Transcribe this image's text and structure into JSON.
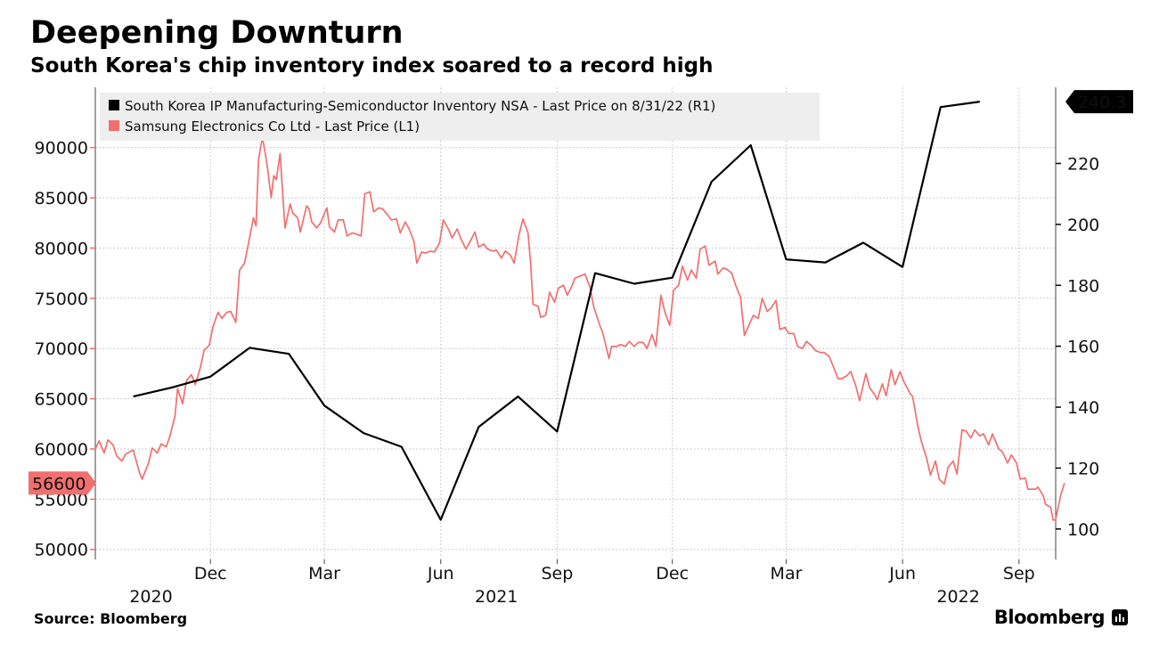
{
  "header": {
    "title": "Deepening Downturn",
    "subtitle": "South Korea's chip inventory index soared to a record high"
  },
  "footer": {
    "source": "Source: Bloomberg",
    "brand": "Bloomberg",
    "brand_icon": "bloomberg-terminal-icon"
  },
  "chart_data": {
    "type": "line",
    "dual_axis": true,
    "legend_placement": "top-left",
    "grid": true,
    "colors": {
      "inventory": "#000000",
      "samsung": "#f26f6f",
      "grid": "#cccccc",
      "legend_bg": "#eeeeee"
    },
    "x_axis": {
      "range": [
        "2020-09-01",
        "2022-09-30"
      ],
      "ticks": [
        {
          "date": "2020-12-01",
          "label": "Dec"
        },
        {
          "date": "2021-03-01",
          "label": "Mar"
        },
        {
          "date": "2021-06-01",
          "label": "Jun"
        },
        {
          "date": "2021-09-01",
          "label": "Sep"
        },
        {
          "date": "2021-12-01",
          "label": "Dec"
        },
        {
          "date": "2022-03-01",
          "label": "Mar"
        },
        {
          "date": "2022-06-01",
          "label": "Jun"
        },
        {
          "date": "2022-09-01",
          "label": "Sep"
        }
      ],
      "year_labels": [
        {
          "date": "2020-10-15",
          "label": "2020"
        },
        {
          "date": "2021-07-15",
          "label": "2021"
        },
        {
          "date": "2022-07-15",
          "label": "2022"
        }
      ]
    },
    "left_axis": {
      "series": "samsung",
      "range": [
        49000,
        96000
      ],
      "ticks": [
        50000,
        55000,
        60000,
        65000,
        70000,
        75000,
        80000,
        85000,
        90000
      ],
      "last_value_label": "56600",
      "last_value": 56600
    },
    "right_axis": {
      "series": "inventory",
      "range": [
        90,
        245
      ],
      "ticks": [
        100,
        120,
        140,
        160,
        180,
        200,
        220
      ],
      "last_value_label": "240.3",
      "last_value": 240.3
    },
    "series": [
      {
        "key": "inventory",
        "name": "South Korea IP Manufacturing-Semiconductor Inventory NSA - Last Price on 8/31/22 (R1)",
        "axis": "right",
        "data": [
          [
            "2020-10-01",
            143.5
          ],
          [
            "2020-11-01",
            146.5
          ],
          [
            "2020-12-01",
            150.0
          ],
          [
            "2021-01-01",
            159.5
          ],
          [
            "2021-02-01",
            157.5
          ],
          [
            "2021-03-01",
            140.5
          ],
          [
            "2021-04-01",
            131.5
          ],
          [
            "2021-05-01",
            127.0
          ],
          [
            "2021-06-01",
            103.0
          ],
          [
            "2021-07-01",
            133.5
          ],
          [
            "2021-08-01",
            143.5
          ],
          [
            "2021-09-01",
            132.0
          ],
          [
            "2021-10-01",
            184.0
          ],
          [
            "2021-11-01",
            180.5
          ],
          [
            "2021-12-01",
            182.5
          ],
          [
            "2022-01-01",
            214.0
          ],
          [
            "2022-02-01",
            226.0
          ],
          [
            "2022-03-01",
            188.5
          ],
          [
            "2022-04-01",
            187.5
          ],
          [
            "2022-05-01",
            194.0
          ],
          [
            "2022-06-01",
            186.0
          ],
          [
            "2022-07-01",
            238.5
          ],
          [
            "2022-08-01",
            240.3
          ]
        ]
      },
      {
        "key": "samsung",
        "name": "Samsung Electronics Co Ltd - Last Price (L1)",
        "axis": "left",
        "data": [
          [
            "2020-09-01",
            60000
          ],
          [
            "2020-09-04",
            60800
          ],
          [
            "2020-09-08",
            59600
          ],
          [
            "2020-09-11",
            60900
          ],
          [
            "2020-09-15",
            60400
          ],
          [
            "2020-09-18",
            59300
          ],
          [
            "2020-09-22",
            58800
          ],
          [
            "2020-09-25",
            59500
          ],
          [
            "2020-10-01",
            59900
          ],
          [
            "2020-10-06",
            57600
          ],
          [
            "2020-10-08",
            57000
          ],
          [
            "2020-10-13",
            58600
          ],
          [
            "2020-10-16",
            60100
          ],
          [
            "2020-10-20",
            59600
          ],
          [
            "2020-10-23",
            60500
          ],
          [
            "2020-10-27",
            60200
          ],
          [
            "2020-10-30",
            61300
          ],
          [
            "2020-11-03",
            63300
          ],
          [
            "2020-11-05",
            66000
          ],
          [
            "2020-11-09",
            64500
          ],
          [
            "2020-11-12",
            66800
          ],
          [
            "2020-11-16",
            67400
          ],
          [
            "2020-11-19",
            66400
          ],
          [
            "2020-11-23",
            68100
          ],
          [
            "2020-11-26",
            69800
          ],
          [
            "2020-11-30",
            70300
          ],
          [
            "2020-12-03",
            72200
          ],
          [
            "2020-12-07",
            73600
          ],
          [
            "2020-12-10",
            73000
          ],
          [
            "2020-12-14",
            73600
          ],
          [
            "2020-12-17",
            73700
          ],
          [
            "2020-12-21",
            72600
          ],
          [
            "2020-12-24",
            77800
          ],
          [
            "2020-12-28",
            78500
          ],
          [
            "2021-01-04",
            83000
          ],
          [
            "2021-01-06",
            82200
          ],
          [
            "2021-01-08",
            88800
          ],
          [
            "2021-01-11",
            91000
          ],
          [
            "2021-01-13",
            89700
          ],
          [
            "2021-01-15",
            88000
          ],
          [
            "2021-01-18",
            85000
          ],
          [
            "2021-01-20",
            87200
          ],
          [
            "2021-01-22",
            86800
          ],
          [
            "2021-01-25",
            89400
          ],
          [
            "2021-01-27",
            85600
          ],
          [
            "2021-01-29",
            82000
          ],
          [
            "2021-02-02",
            84400
          ],
          [
            "2021-02-04",
            83500
          ],
          [
            "2021-02-08",
            83000
          ],
          [
            "2021-02-10",
            81600
          ],
          [
            "2021-02-15",
            84200
          ],
          [
            "2021-02-17",
            83900
          ],
          [
            "2021-02-19",
            82600
          ],
          [
            "2021-02-23",
            82000
          ],
          [
            "2021-02-26",
            82500
          ],
          [
            "2021-03-03",
            84000
          ],
          [
            "2021-03-05",
            82100
          ],
          [
            "2021-03-09",
            81600
          ],
          [
            "2021-03-12",
            82800
          ],
          [
            "2021-03-16",
            82800
          ],
          [
            "2021-03-19",
            81200
          ],
          [
            "2021-03-23",
            81500
          ],
          [
            "2021-03-26",
            81400
          ],
          [
            "2021-03-30",
            81200
          ],
          [
            "2021-04-02",
            85400
          ],
          [
            "2021-04-06",
            85600
          ],
          [
            "2021-04-09",
            83600
          ],
          [
            "2021-04-13",
            84000
          ],
          [
            "2021-04-16",
            83900
          ],
          [
            "2021-04-20",
            83300
          ],
          [
            "2021-04-23",
            82800
          ],
          [
            "2021-04-27",
            82900
          ],
          [
            "2021-04-30",
            81500
          ],
          [
            "2021-05-04",
            82600
          ],
          [
            "2021-05-07",
            81900
          ],
          [
            "2021-05-11",
            80600
          ],
          [
            "2021-05-13",
            78500
          ],
          [
            "2021-05-17",
            79600
          ],
          [
            "2021-05-20",
            79500
          ],
          [
            "2021-05-24",
            79700
          ],
          [
            "2021-05-27",
            79600
          ],
          [
            "2021-05-31",
            80500
          ],
          [
            "2021-06-03",
            82800
          ],
          [
            "2021-06-07",
            81900
          ],
          [
            "2021-06-10",
            81000
          ],
          [
            "2021-06-14",
            81900
          ],
          [
            "2021-06-17",
            80900
          ],
          [
            "2021-06-21",
            79900
          ],
          [
            "2021-06-24",
            80600
          ],
          [
            "2021-06-28",
            81600
          ],
          [
            "2021-07-01",
            80100
          ],
          [
            "2021-07-05",
            80400
          ],
          [
            "2021-07-08",
            79900
          ],
          [
            "2021-07-12",
            79700
          ],
          [
            "2021-07-15",
            79800
          ],
          [
            "2021-07-19",
            79000
          ],
          [
            "2021-07-22",
            79700
          ],
          [
            "2021-07-26",
            79300
          ],
          [
            "2021-07-29",
            78500
          ],
          [
            "2021-08-02",
            81400
          ],
          [
            "2021-08-05",
            82900
          ],
          [
            "2021-08-09",
            81500
          ],
          [
            "2021-08-11",
            78500
          ],
          [
            "2021-08-13",
            74400
          ],
          [
            "2021-08-17",
            74200
          ],
          [
            "2021-08-19",
            73100
          ],
          [
            "2021-08-23",
            73300
          ],
          [
            "2021-08-26",
            75600
          ],
          [
            "2021-08-30",
            74600
          ],
          [
            "2021-09-02",
            76000
          ],
          [
            "2021-09-06",
            76300
          ],
          [
            "2021-09-09",
            75300
          ],
          [
            "2021-09-13",
            76300
          ],
          [
            "2021-09-15",
            77000
          ],
          [
            "2021-09-23",
            77400
          ],
          [
            "2021-09-27",
            76100
          ],
          [
            "2021-09-30",
            74100
          ],
          [
            "2021-10-05",
            72200
          ],
          [
            "2021-10-07",
            71600
          ],
          [
            "2021-10-12",
            69000
          ],
          [
            "2021-10-14",
            70200
          ],
          [
            "2021-10-18",
            70200
          ],
          [
            "2021-10-21",
            70400
          ],
          [
            "2021-10-25",
            70200
          ],
          [
            "2021-10-28",
            70700
          ],
          [
            "2021-11-01",
            70200
          ],
          [
            "2021-11-04",
            70600
          ],
          [
            "2021-11-08",
            70600
          ],
          [
            "2021-11-11",
            70000
          ],
          [
            "2021-11-15",
            71400
          ],
          [
            "2021-11-18",
            70200
          ],
          [
            "2021-11-22",
            75300
          ],
          [
            "2021-11-25",
            73700
          ],
          [
            "2021-11-29",
            72300
          ],
          [
            "2021-12-02",
            75800
          ],
          [
            "2021-12-06",
            76300
          ],
          [
            "2021-12-09",
            78200
          ],
          [
            "2021-12-13",
            76800
          ],
          [
            "2021-12-16",
            77800
          ],
          [
            "2021-12-20",
            77000
          ],
          [
            "2021-12-23",
            79900
          ],
          [
            "2021-12-27",
            80200
          ],
          [
            "2021-12-30",
            78300
          ],
          [
            "2022-01-04",
            78700
          ],
          [
            "2022-01-06",
            77400
          ],
          [
            "2022-01-10",
            78000
          ],
          [
            "2022-01-13",
            77900
          ],
          [
            "2022-01-17",
            77500
          ],
          [
            "2022-01-20",
            76300
          ],
          [
            "2022-01-24",
            75100
          ],
          [
            "2022-01-27",
            71300
          ],
          [
            "2022-02-03",
            73300
          ],
          [
            "2022-02-07",
            73000
          ],
          [
            "2022-02-10",
            75000
          ],
          [
            "2022-02-14",
            73700
          ],
          [
            "2022-02-17",
            74000
          ],
          [
            "2022-02-21",
            74800
          ],
          [
            "2022-02-24",
            71900
          ],
          [
            "2022-02-28",
            72100
          ],
          [
            "2022-03-03",
            71500
          ],
          [
            "2022-03-07",
            71500
          ],
          [
            "2022-03-10",
            70200
          ],
          [
            "2022-03-14",
            70000
          ],
          [
            "2022-03-17",
            70700
          ],
          [
            "2022-03-21",
            70300
          ],
          [
            "2022-03-24",
            69800
          ],
          [
            "2022-03-28",
            69600
          ],
          [
            "2022-03-31",
            69600
          ],
          [
            "2022-04-04",
            69200
          ],
          [
            "2022-04-07",
            68300
          ],
          [
            "2022-04-11",
            67000
          ],
          [
            "2022-04-14",
            67000
          ],
          [
            "2022-04-18",
            67300
          ],
          [
            "2022-04-21",
            67700
          ],
          [
            "2022-04-25",
            66300
          ],
          [
            "2022-04-28",
            64800
          ],
          [
            "2022-05-03",
            67500
          ],
          [
            "2022-05-06",
            66100
          ],
          [
            "2022-05-10",
            65400
          ],
          [
            "2022-05-12",
            64900
          ],
          [
            "2022-05-16",
            66500
          ],
          [
            "2022-05-19",
            65300
          ],
          [
            "2022-05-23",
            67900
          ],
          [
            "2022-05-26",
            66400
          ],
          [
            "2022-05-30",
            67700
          ],
          [
            "2022-06-02",
            66700
          ],
          [
            "2022-06-07",
            65500
          ],
          [
            "2022-06-09",
            65200
          ],
          [
            "2022-06-13",
            62300
          ],
          [
            "2022-06-16",
            60700
          ],
          [
            "2022-06-20",
            59100
          ],
          [
            "2022-06-23",
            57400
          ],
          [
            "2022-06-27",
            58800
          ],
          [
            "2022-06-30",
            57000
          ],
          [
            "2022-07-04",
            56500
          ],
          [
            "2022-07-07",
            58200
          ],
          [
            "2022-07-11",
            58800
          ],
          [
            "2022-07-14",
            57500
          ],
          [
            "2022-07-18",
            61900
          ],
          [
            "2022-07-21",
            61800
          ],
          [
            "2022-07-25",
            61100
          ],
          [
            "2022-07-28",
            61900
          ],
          [
            "2022-08-01",
            61300
          ],
          [
            "2022-08-04",
            61500
          ],
          [
            "2022-08-08",
            60400
          ],
          [
            "2022-08-11",
            61500
          ],
          [
            "2022-08-16",
            60000
          ],
          [
            "2022-08-19",
            59700
          ],
          [
            "2022-08-23",
            58600
          ],
          [
            "2022-08-26",
            59400
          ],
          [
            "2022-08-30",
            58600
          ],
          [
            "2022-09-02",
            57000
          ],
          [
            "2022-09-06",
            57100
          ],
          [
            "2022-09-08",
            56000
          ],
          [
            "2022-09-14",
            56000
          ],
          [
            "2022-09-16",
            56200
          ],
          [
            "2022-09-20",
            55400
          ],
          [
            "2022-09-22",
            54500
          ],
          [
            "2022-09-26",
            54200
          ],
          [
            "2022-09-28",
            52900
          ],
          [
            "2022-09-30",
            53000
          ],
          [
            "2022-10-04",
            55400
          ],
          [
            "2022-10-07",
            56600
          ]
        ]
      }
    ]
  }
}
